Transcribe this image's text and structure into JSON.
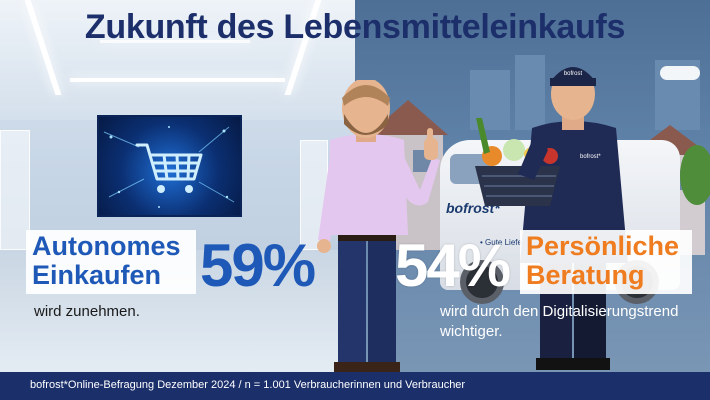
{
  "title": "Zukunft des Lebensmitteleinkaufs",
  "left": {
    "label_line1": "Autonomes",
    "label_line2": "Einkaufen",
    "percentage": "59%",
    "subtitle": "wird zunehmen."
  },
  "right": {
    "label_line1": "Persönliche",
    "label_line2": "Beratung",
    "percentage": "54%",
    "subtitle": "wird durch den Digitalisierungstrend wichtiger."
  },
  "van": {
    "brand": "bofrost*",
    "tagline": "• Gute Lieferung"
  },
  "cap_logo": "bofrost",
  "jacket_logo": "bofrost*",
  "footer": "bofrost*Online-Befragung Dezember 2024 / n =  1.001 Verbraucherinnen und Verbraucher",
  "colors": {
    "title": "#1c2f6b",
    "left_accent": "#1f59b8",
    "right_accent": "#ef7c1f",
    "footer_bg": "#1b2f6b"
  },
  "icons": [
    "shopping-cart-icon"
  ]
}
